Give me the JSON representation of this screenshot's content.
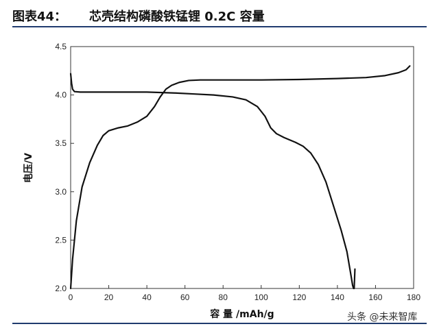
{
  "header": {
    "figure_label": "图表44：",
    "title": "芯壳结构磷酸铁锰锂 0.2C 容量"
  },
  "watermark": "头条 @未来智库",
  "chart_data": {
    "type": "line",
    "title": "芯壳结构磷酸铁锰锂 0.2C 容量",
    "xlabel": "容 量 /mAh/g",
    "ylabel": "电压/V",
    "xlim": [
      0,
      180
    ],
    "ylim": [
      2.0,
      4.5
    ],
    "xticks": [
      0,
      20,
      40,
      60,
      80,
      100,
      120,
      140,
      160,
      180
    ],
    "yticks": [
      2.0,
      2.5,
      3.0,
      3.5,
      4.0,
      4.5
    ],
    "xtick_labels": [
      "0",
      "20",
      "40",
      "60",
      "80",
      "100",
      "120",
      "140",
      "160",
      "180"
    ],
    "ytick_labels": [
      "2.0",
      "2.5",
      "3.0",
      "3.5",
      "4.0",
      "4.5"
    ],
    "grid": false,
    "series": [
      {
        "color": "#111111",
        "points": [
          [
            0,
            2.0
          ],
          [
            1,
            2.3
          ],
          [
            3,
            2.7
          ],
          [
            6,
            3.05
          ],
          [
            10,
            3.3
          ],
          [
            14,
            3.48
          ],
          [
            17,
            3.58
          ],
          [
            20,
            3.63
          ],
          [
            25,
            3.66
          ],
          [
            30,
            3.68
          ],
          [
            35,
            3.72
          ],
          [
            40,
            3.78
          ],
          [
            44,
            3.88
          ],
          [
            47,
            3.98
          ],
          [
            50,
            4.06
          ],
          [
            53,
            4.1
          ],
          [
            57,
            4.13
          ],
          [
            62,
            4.15
          ],
          [
            68,
            4.155
          ],
          [
            80,
            4.155
          ],
          [
            100,
            4.155
          ],
          [
            120,
            4.16
          ],
          [
            140,
            4.17
          ],
          [
            155,
            4.18
          ],
          [
            165,
            4.2
          ],
          [
            172,
            4.23
          ],
          [
            176,
            4.26
          ],
          [
            178,
            4.3
          ]
        ]
      },
      {
        "color": "#111111",
        "points": [
          [
            0,
            4.22
          ],
          [
            0.5,
            4.12
          ],
          [
            1,
            4.06
          ],
          [
            2,
            4.035
          ],
          [
            5,
            4.03
          ],
          [
            20,
            4.03
          ],
          [
            40,
            4.03
          ],
          [
            55,
            4.02
          ],
          [
            65,
            4.01
          ],
          [
            75,
            4.0
          ],
          [
            85,
            3.98
          ],
          [
            92,
            3.95
          ],
          [
            98,
            3.88
          ],
          [
            102,
            3.78
          ],
          [
            105,
            3.66
          ],
          [
            108,
            3.6
          ],
          [
            112,
            3.56
          ],
          [
            118,
            3.51
          ],
          [
            122,
            3.47
          ],
          [
            126,
            3.4
          ],
          [
            130,
            3.28
          ],
          [
            134,
            3.1
          ],
          [
            138,
            2.85
          ],
          [
            142,
            2.6
          ],
          [
            145,
            2.38
          ],
          [
            147,
            2.15
          ],
          [
            148,
            2.03
          ],
          [
            148.5,
            2.0
          ]
        ]
      },
      {
        "color": "#111111",
        "points": [
          [
            148.8,
            2.0
          ],
          [
            149.2,
            2.2
          ]
        ]
      }
    ]
  }
}
